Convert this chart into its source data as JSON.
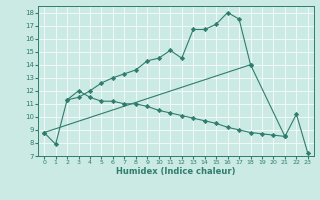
{
  "xlabel": "Humidex (Indice chaleur)",
  "bg_color": "#cceae4",
  "line_color": "#2e7d6e",
  "xlim": [
    -0.5,
    23.5
  ],
  "ylim": [
    7,
    18.5
  ],
  "yticks": [
    7,
    8,
    9,
    10,
    11,
    12,
    13,
    14,
    15,
    16,
    17,
    18
  ],
  "xticks": [
    0,
    1,
    2,
    3,
    4,
    5,
    6,
    7,
    8,
    9,
    10,
    11,
    12,
    13,
    14,
    15,
    16,
    17,
    18,
    19,
    20,
    21,
    22,
    23
  ],
  "series": [
    {
      "x": [
        0,
        1,
        2,
        3,
        4,
        5,
        6,
        7,
        8,
        9,
        10,
        11,
        12,
        13,
        14,
        15,
        16,
        17,
        18
      ],
      "y": [
        8.8,
        7.9,
        11.3,
        11.5,
        12.0,
        12.6,
        13.0,
        13.3,
        13.6,
        14.3,
        14.5,
        15.1,
        14.5,
        16.7,
        16.7,
        17.1,
        18.0,
        17.5,
        14.0
      ]
    },
    {
      "x": [
        0,
        18,
        21
      ],
      "y": [
        8.8,
        14.0,
        8.5
      ]
    },
    {
      "x": [
        2,
        3,
        4,
        5,
        6,
        7,
        8,
        9,
        10,
        11,
        12,
        13,
        14,
        15,
        16,
        17,
        18,
        19,
        20,
        21
      ],
      "y": [
        11.3,
        12.0,
        11.5,
        11.2,
        11.2,
        11.0,
        11.0,
        10.8,
        10.5,
        10.3,
        10.1,
        9.9,
        9.7,
        9.5,
        9.2,
        9.0,
        8.8,
        8.7,
        8.6,
        8.5
      ]
    },
    {
      "x": [
        21,
        22,
        23
      ],
      "y": [
        8.5,
        10.2,
        7.2
      ]
    }
  ]
}
